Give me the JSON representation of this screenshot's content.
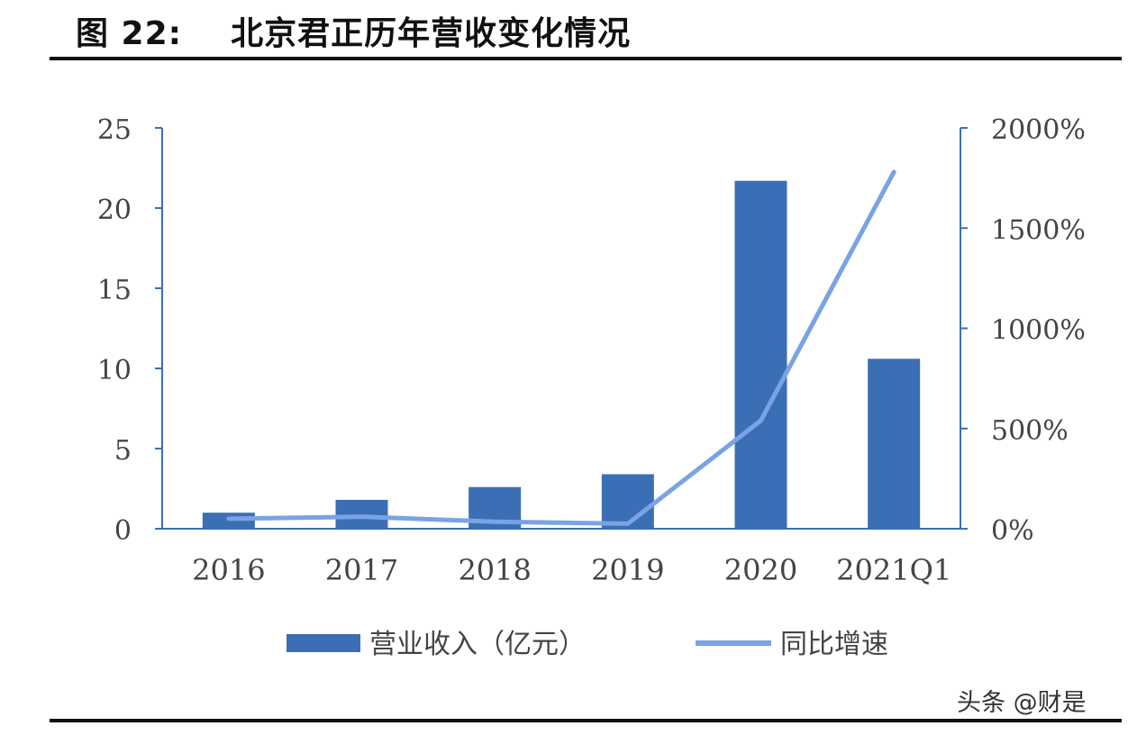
{
  "figure_title": "图 22:    北京君正历年营收变化情况",
  "watermark": "头条 @财是",
  "chart_data": {
    "type": "bar",
    "categories": [
      "2016",
      "2017",
      "2018",
      "2019",
      "2020",
      "2021Q1"
    ],
    "series": [
      {
        "name": "营业收入（亿元）",
        "type": "bar",
        "axis": "left",
        "values": [
          1.0,
          1.8,
          2.6,
          3.4,
          21.7,
          10.6
        ]
      },
      {
        "name": "同比增速",
        "type": "line",
        "axis": "right",
        "values": [
          50,
          60,
          35,
          25,
          540,
          1780
        ]
      }
    ],
    "y_left": {
      "ylim": [
        0,
        25
      ],
      "ticks": [
        "0",
        "5",
        "10",
        "15",
        "20",
        "25"
      ]
    },
    "y_right": {
      "ylim": [
        0,
        2000
      ],
      "ticks": [
        "0%",
        "500%",
        "1000%",
        "1500%",
        "2000%"
      ]
    },
    "colors": {
      "bar": "#3a6fb5",
      "line": "#7aa3e3",
      "axis": "#3a6fb5"
    },
    "legend": "bottom-center"
  }
}
